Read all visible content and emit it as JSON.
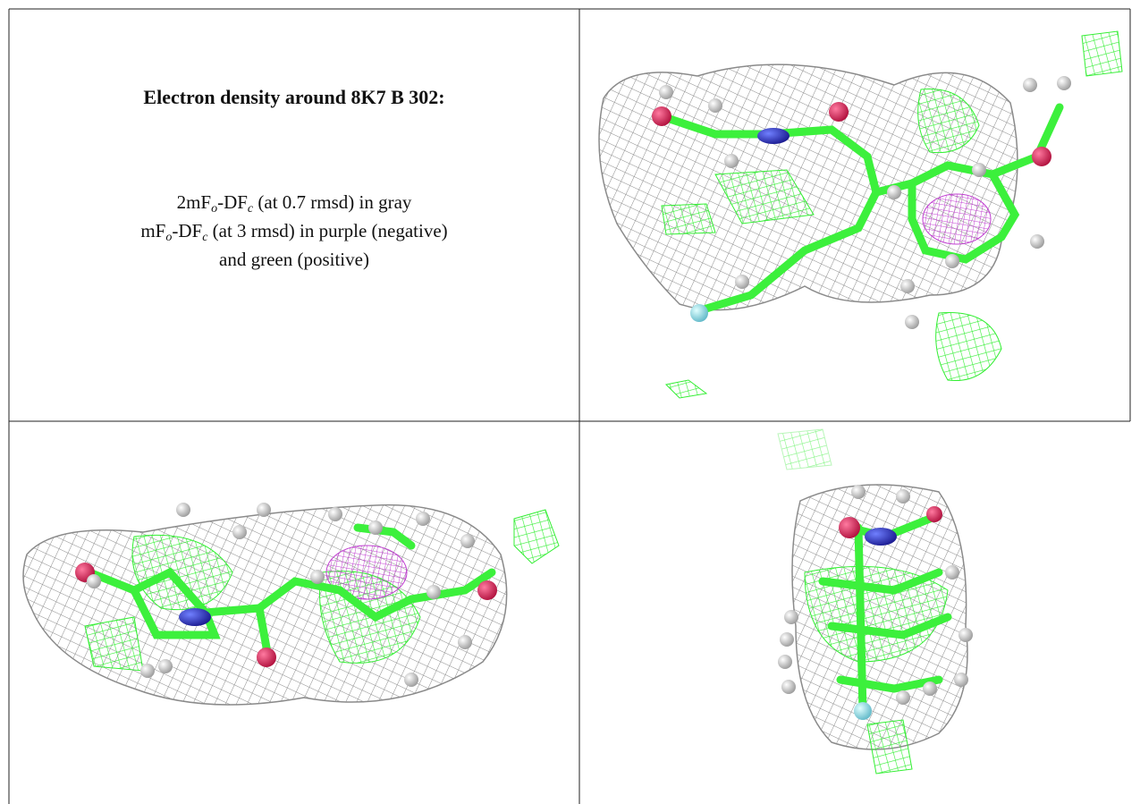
{
  "caption": {
    "title": "Electron density around 8K7 B 302:",
    "lines": [
      [
        "2mF",
        "o",
        "-DF",
        "c",
        " (at 0.7 rmsd) in gray"
      ],
      [
        "mF",
        "o",
        "-DF",
        "c",
        " (at 3 rmsd) in purple (negative)"
      ],
      [
        "and green (positive)"
      ]
    ]
  }
}
